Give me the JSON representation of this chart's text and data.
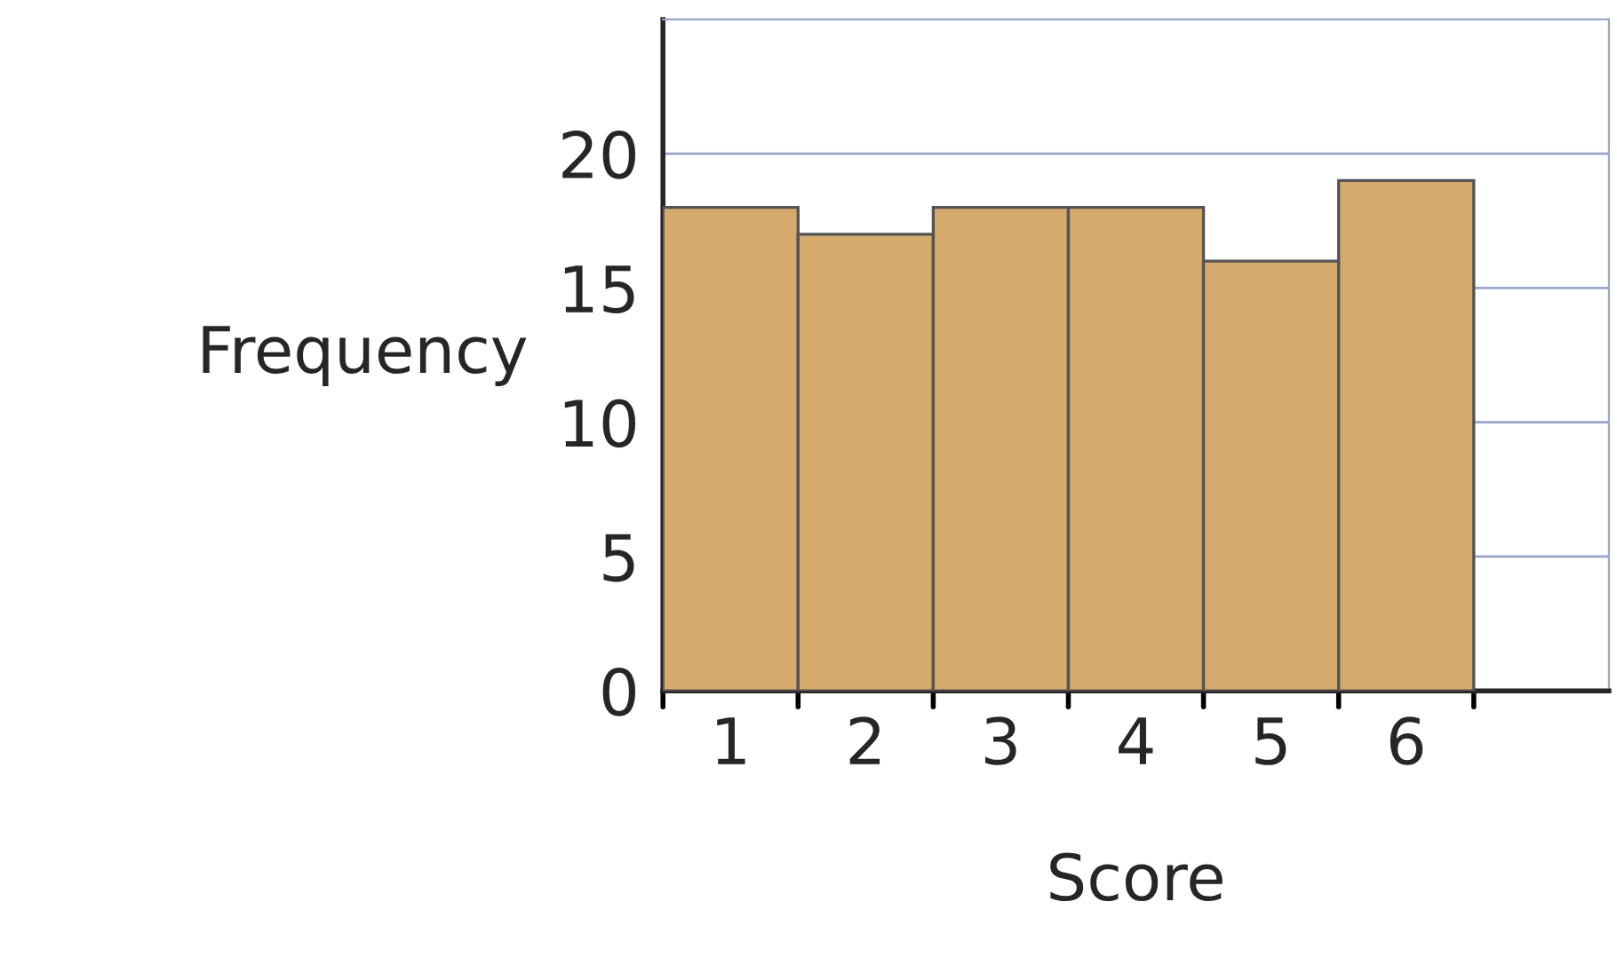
{
  "chart_data": {
    "type": "bar",
    "xlabel": "Score",
    "ylabel": "Frequency",
    "categories": [
      "1",
      "2",
      "3",
      "4",
      "5",
      "6"
    ],
    "values": [
      18,
      17,
      18,
      18,
      16,
      19
    ],
    "color": "#d6a96c",
    "ylim": [
      0,
      25
    ],
    "yticks": [
      0,
      5,
      10,
      15,
      20
    ],
    "grid": "y"
  }
}
